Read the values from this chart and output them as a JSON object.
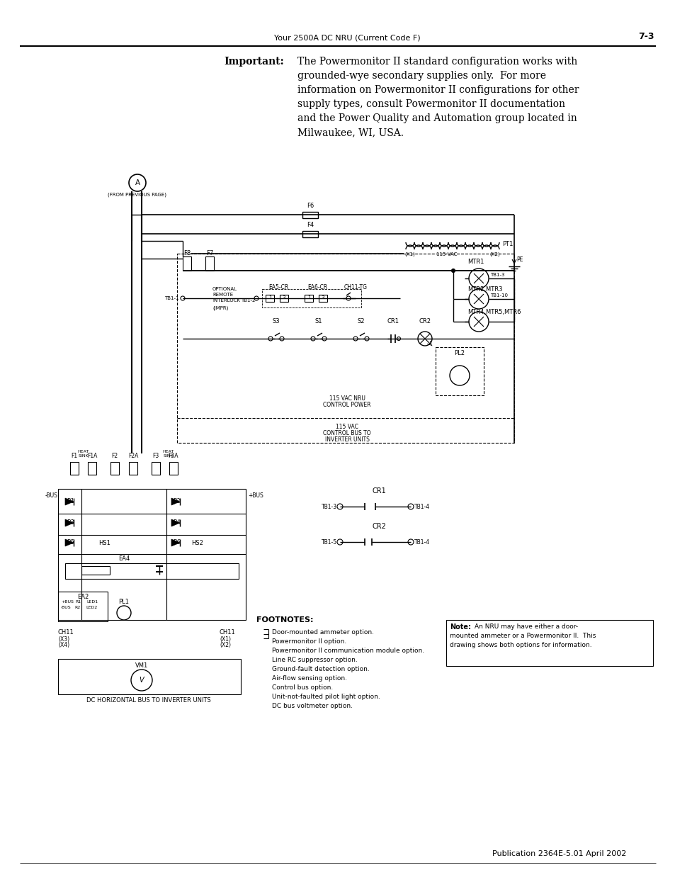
{
  "page_header_center": "Your 2500A DC NRU (Current Code F)",
  "page_header_right": "7-3",
  "page_footer": "Publication 2364E-5.01 April 2002",
  "important_label": "Important:",
  "important_lines": [
    "The Powermonitor II standard configuration works with",
    "grounded-wye secondary supplies only.  For more",
    "information on Powermonitor II configurations for other",
    "supply types, consult Powermonitor II documentation",
    "and the Power Quality and Automation group located in",
    "Milwaukee, WI, USA."
  ],
  "bg_color": "#ffffff",
  "footnotes_title": "FOOTNOTES:",
  "footnote_lines": [
    "Door-mounted ammeter option.",
    "Powermonitor II option.",
    "Powermonitor II communication module option.",
    "Line RC suppressor option.",
    "Ground-fault detection option.",
    "Air-flow sensing option.",
    "Control bus option.",
    "Unit-not-faulted pilot light option.",
    "DC bus voltmeter option."
  ],
  "note_text_lines": [
    "Note: An NRU may have either a door-",
    "mounted ammeter or a Powermonitor II.  This",
    "drawing shows both options for information."
  ],
  "from_prev": "(FROM PREVIOUS PAGE)",
  "dc_bus_label": "DC HORIZONTAL BUS TO INVERTER UNITS",
  "label_115_nru": "115 VAC NRU",
  "label_ctrl_pwr": "CONTROL POWER",
  "label_115_vac": "115 VAC",
  "label_ctrl_bus": "CONTROL BUS TO",
  "label_inv_units": "INVERTER UNITS"
}
